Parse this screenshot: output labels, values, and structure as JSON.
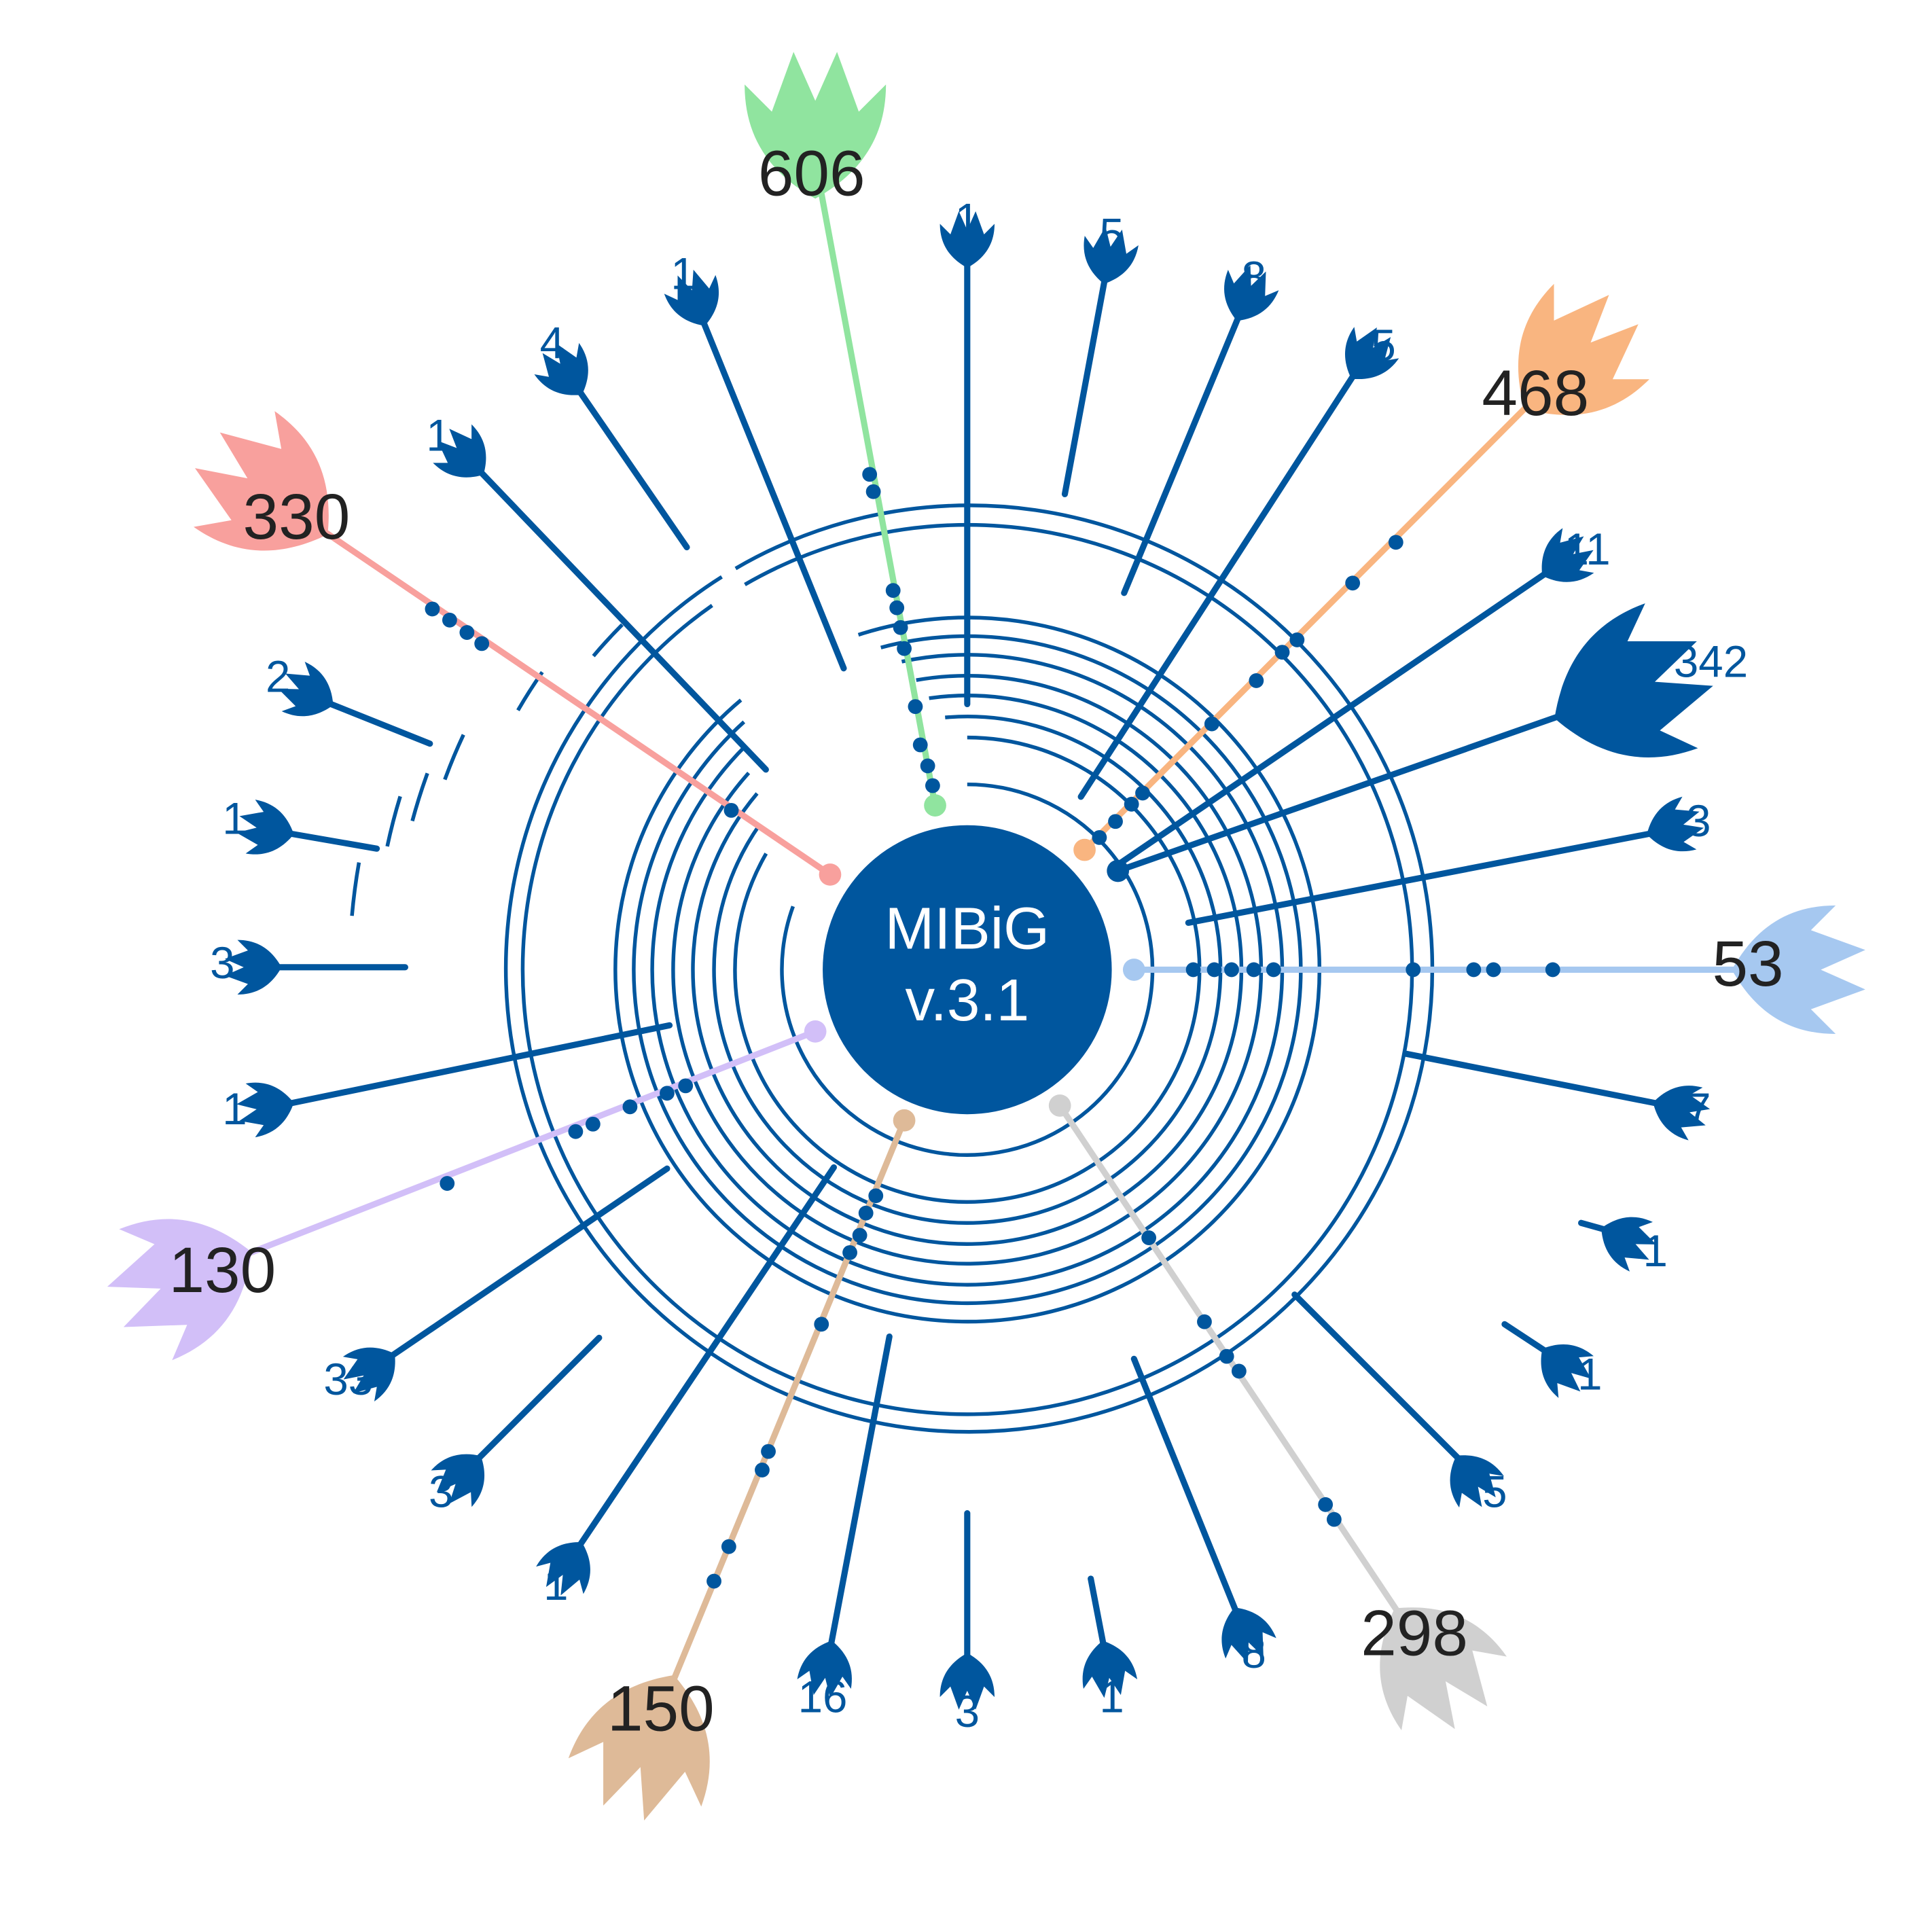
{
  "center": {
    "line1": "MIBiG",
    "line2": "v.3.1",
    "color": "#00569e"
  },
  "colors": {
    "blue": "#00569e"
  },
  "large_nodes": [
    {
      "id": "green",
      "label": "606",
      "color": "#90e49f"
    },
    {
      "id": "orange",
      "label": "468",
      "color": "#f9b580"
    },
    {
      "id": "blue",
      "label": "342",
      "color": "#00569e"
    },
    {
      "id": "lightblue",
      "label": "53",
      "color": "#a6c8f0"
    },
    {
      "id": "gray",
      "label": "298",
      "color": "#d0d0d0"
    },
    {
      "id": "tan",
      "label": "150",
      "color": "#deba98"
    },
    {
      "id": "purple",
      "label": "130",
      "color": "#d2bff8"
    },
    {
      "id": "salmon",
      "label": "330",
      "color": "#f8a09d"
    }
  ],
  "small_nodes": [
    {
      "id": "n1",
      "label": "1"
    },
    {
      "id": "n2",
      "label": "5"
    },
    {
      "id": "n3",
      "label": "8"
    },
    {
      "id": "n4",
      "label": "5"
    },
    {
      "id": "n5",
      "label": "11"
    },
    {
      "id": "n6",
      "label": "3"
    },
    {
      "id": "n7",
      "label": "7"
    },
    {
      "id": "n8",
      "label": "1"
    },
    {
      "id": "n9",
      "label": "1"
    },
    {
      "id": "n10",
      "label": "5"
    },
    {
      "id": "n11",
      "label": "8"
    },
    {
      "id": "n12",
      "label": "1"
    },
    {
      "id": "n13",
      "label": "3"
    },
    {
      "id": "n14",
      "label": "16"
    },
    {
      "id": "n15",
      "label": "1"
    },
    {
      "id": "n16",
      "label": "3"
    },
    {
      "id": "n17",
      "label": "33"
    },
    {
      "id": "n18",
      "label": "1"
    },
    {
      "id": "n19",
      "label": "3"
    },
    {
      "id": "n20",
      "label": "1"
    },
    {
      "id": "n21",
      "label": "2"
    },
    {
      "id": "n22",
      "label": "1"
    },
    {
      "id": "n23",
      "label": "4"
    },
    {
      "id": "n24",
      "label": "1"
    }
  ]
}
